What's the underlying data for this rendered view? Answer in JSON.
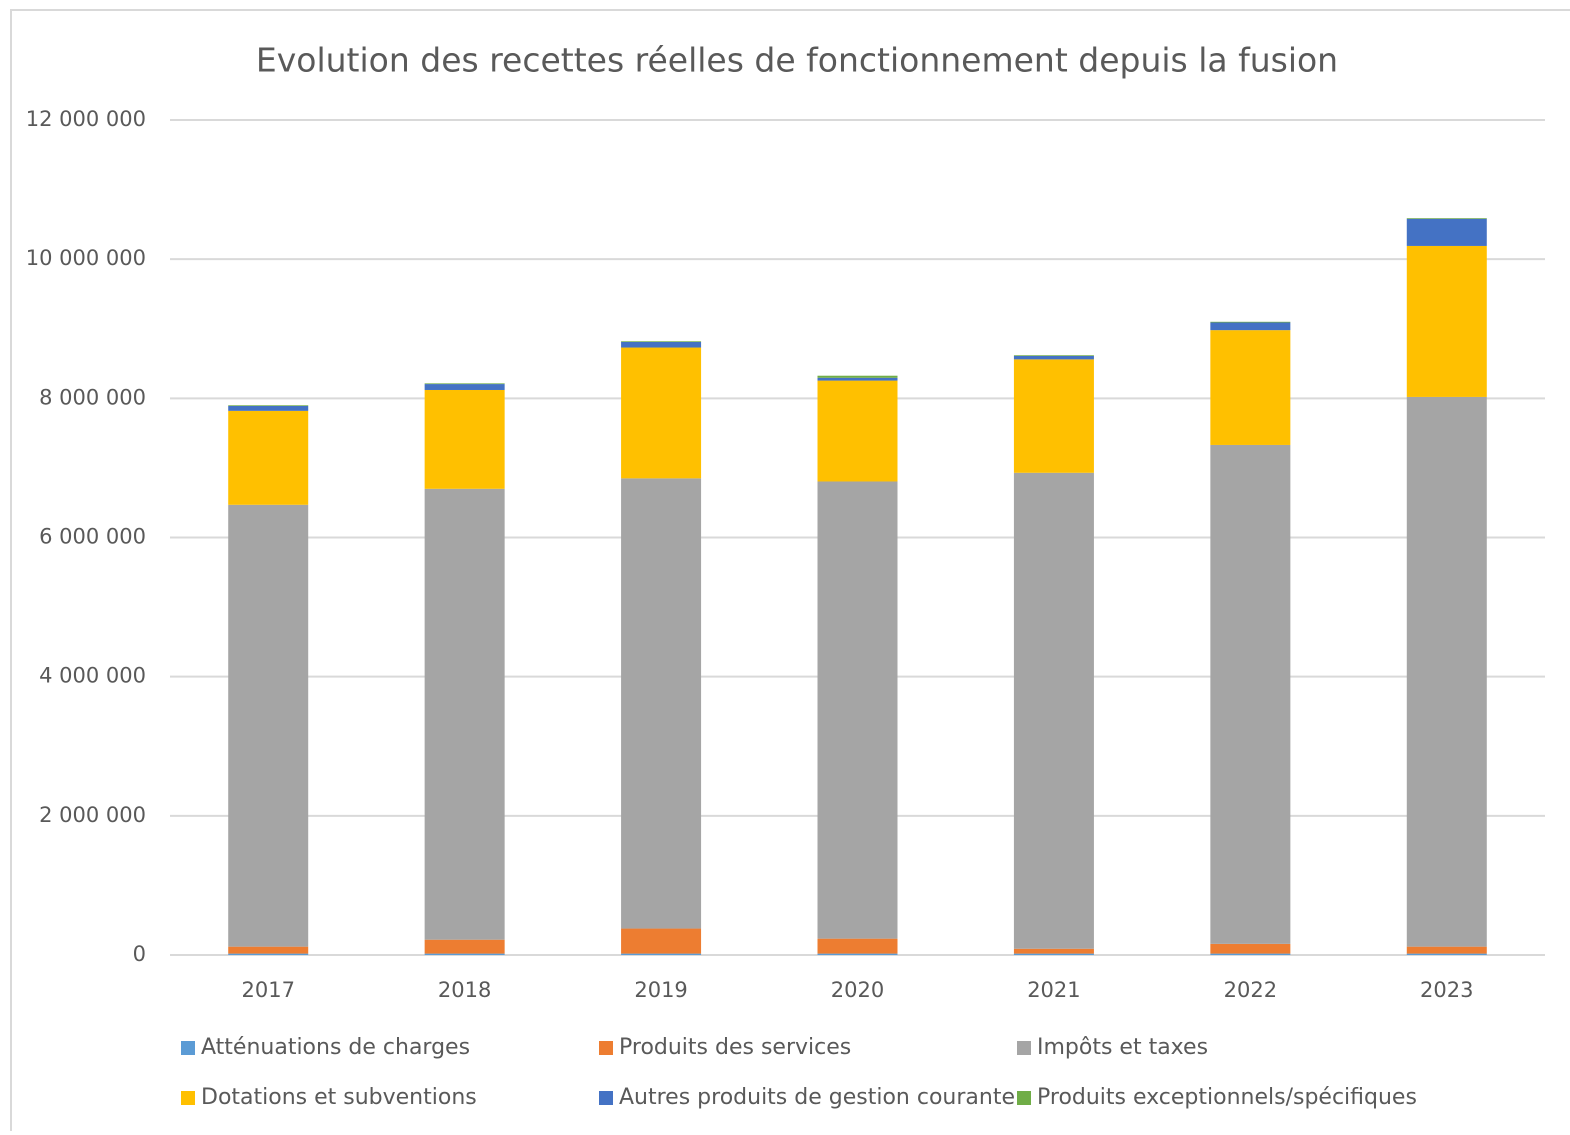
{
  "chart_data": {
    "type": "stacked_bar",
    "title": "Evolution des recettes réelles de fonctionnement depuis la fusion",
    "categories": [
      "2017",
      "2018",
      "2019",
      "2020",
      "2021",
      "2022",
      "2023"
    ],
    "series": [
      {
        "name": "Atténuations de charges",
        "color": "#5b9bd5",
        "values": [
          20000,
          20000,
          20000,
          20000,
          20000,
          20000,
          20000
        ]
      },
      {
        "name": "Produits des services",
        "color": "#ed7d31",
        "values": [
          100000,
          200000,
          360000,
          215000,
          70000,
          140000,
          100000
        ]
      },
      {
        "name": "Impôts et taxes",
        "color": "#a5a5a5",
        "values": [
          6350000,
          6480000,
          6470000,
          6570000,
          6840000,
          7170000,
          7900000
        ]
      },
      {
        "name": "Dotations et subventions",
        "color": "#ffc000",
        "values": [
          1350000,
          1420000,
          1880000,
          1450000,
          1630000,
          1650000,
          2170000
        ]
      },
      {
        "name": "Autres produits de gestion courante",
        "color": "#4472c4",
        "values": [
          70000,
          85000,
          80000,
          40000,
          50000,
          110000,
          390000
        ]
      },
      {
        "name": "Produits exceptionnels/spécifiques",
        "color": "#70ad47",
        "values": [
          10000,
          10000,
          10000,
          30000,
          10000,
          10000,
          10000
        ]
      }
    ],
    "ylim": [
      0,
      12000000
    ],
    "yticks": [
      0,
      {
        "value": 2000000,
        "label": "2 000 000"
      },
      {
        "value": 4000000,
        "label": "4 000 000"
      },
      {
        "value": 6000000,
        "label": "6 000 000"
      },
      {
        "value": 8000000,
        "label": "8 000 000"
      },
      {
        "value": 10000000,
        "label": "10 000 000"
      },
      {
        "value": 12000000,
        "label": "12 000 000"
      }
    ],
    "grid": true,
    "legend": "bottom"
  }
}
